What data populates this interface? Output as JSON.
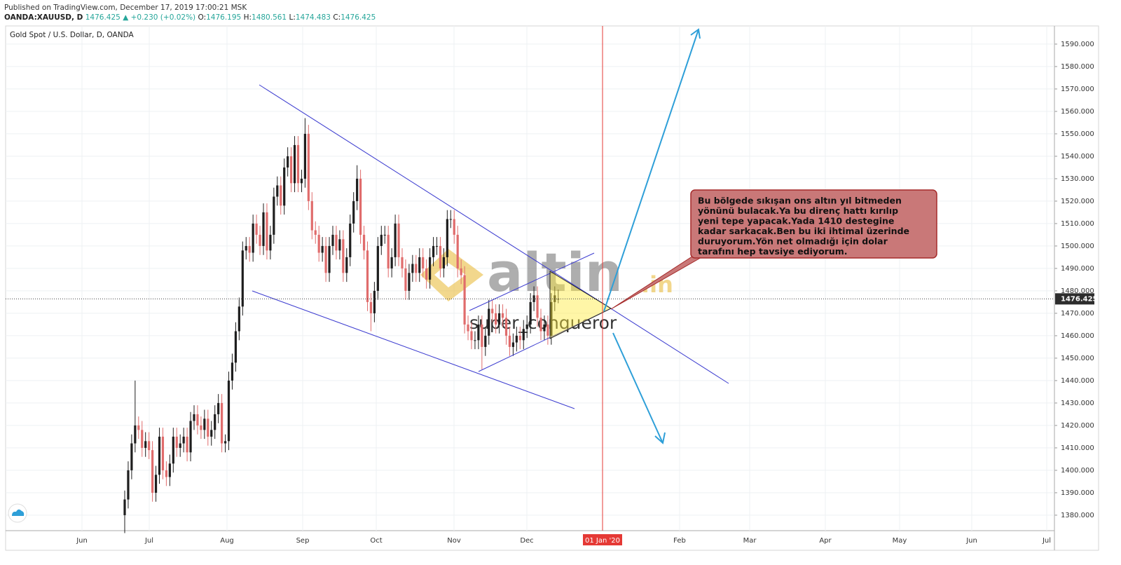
{
  "header": {
    "published": "Published on TradingView.com, December 17, 2019 17:00:21 MSK",
    "symbol": "OANDA:XAUUSD, D",
    "last": "1476.425",
    "change": "▲ +0.230 (+0.02%)",
    "ohlc": [
      {
        "k": "O:",
        "v": "1476.195"
      },
      {
        "k": "H:",
        "v": "1480.561"
      },
      {
        "k": "L:",
        "v": "1474.483"
      },
      {
        "k": "C:",
        "v": "1476.425"
      }
    ]
  },
  "annotation": {
    "lines": [
      "Bu bölgede sıkışan ons altın yıl bitmeden",
      "yönünü bulacak.Ya bu direnç hattı kırılıp",
      "yeni tepe yapacak.Yada 1410 destegine",
      "kadar sarkacak.Ben bu iki ihtimal üzerinde",
      "duruyorum.Yön net olmadığı için dolar",
      "tarafını hep tavsiye ediyorum."
    ]
  },
  "watermark": {
    "brand": "altin",
    "tld": ".in",
    "author": "super_conqueror"
  },
  "chart_data": {
    "type": "candlestick",
    "title": "Gold Spot / U.S. Dollar, D, OANDA",
    "x_labels": [
      "Jun",
      "Jul",
      "Aug",
      "Sep",
      "Oct",
      "Nov",
      "Dec",
      "Feb",
      "Mar",
      "Apr",
      "May",
      "Jun",
      "Jul"
    ],
    "marker_label": "01 Jan '20",
    "up_color": "#1e1e1e",
    "down_color": "#e06c6c",
    "grid": true,
    "ylim": [
      1373.1,
      1598.1
    ],
    "yticks": [
      {
        "value": 1380,
        "label": "1380.000"
      },
      {
        "value": 1390,
        "label": "1390.000"
      },
      {
        "value": 1400,
        "label": "1400.000"
      },
      {
        "value": 1410,
        "label": "1410.000"
      },
      {
        "value": 1420,
        "label": "1420.000"
      },
      {
        "value": 1430,
        "label": "1430.000"
      },
      {
        "value": 1440,
        "label": "1440.000"
      },
      {
        "value": 1450,
        "label": "1450.000"
      },
      {
        "value": 1460,
        "label": "1460.000"
      },
      {
        "value": 1470,
        "label": "1470.000"
      },
      {
        "value": 1480,
        "label": "1480.000"
      },
      {
        "value": 1490,
        "label": "1490.000"
      },
      {
        "value": 1500,
        "label": "1500.000"
      },
      {
        "value": 1510,
        "label": "1510.000"
      },
      {
        "value": 1520,
        "label": "1520.000"
      },
      {
        "value": 1530,
        "label": "1530.000"
      },
      {
        "value": 1540,
        "label": "1540.000"
      },
      {
        "value": 1550,
        "label": "1550.000"
      },
      {
        "value": 1560,
        "label": "1560.000"
      },
      {
        "value": 1570,
        "label": "1570.000"
      },
      {
        "value": 1580,
        "label": "1580.000"
      },
      {
        "value": 1590,
        "label": "1590.000"
      }
    ],
    "price_line": {
      "value": 1476.425,
      "label": "1476.425"
    },
    "open": [
      1380,
      1387,
      1400,
      1412,
      1420,
      1418,
      1410,
      1413,
      1409,
      1390,
      1398,
      1415,
      1400,
      1397,
      1403,
      1415,
      1410,
      1412,
      1415,
      1408,
      1422,
      1425,
      1420,
      1418,
      1423,
      1415,
      1418,
      1425,
      1430,
      1412,
      1413,
      1440,
      1448,
      1462,
      1473,
      1498,
      1500,
      1497,
      1510,
      1505,
      1500,
      1515,
      1498,
      1505,
      1522,
      1527,
      1518,
      1535,
      1540,
      1528,
      1545,
      1528,
      1530,
      1550,
      1520,
      1507,
      1505,
      1497,
      1500,
      1488,
      1500,
      1505,
      1498,
      1503,
      1488,
      1495,
      1510,
      1520,
      1530,
      1505,
      1498,
      1475,
      1470,
      1480,
      1500,
      1505,
      1505,
      1490,
      1495,
      1510,
      1495,
      1490,
      1480,
      1488,
      1492,
      1488,
      1495,
      1490,
      1485,
      1495,
      1500,
      1500,
      1490,
      1495,
      1512,
      1512,
      1505,
      1490,
      1487,
      1465,
      1462,
      1458,
      1458,
      1465,
      1455,
      1460,
      1472,
      1470,
      1465,
      1470,
      1468,
      1460,
      1455,
      1457,
      1460,
      1458,
      1463,
      1465,
      1475,
      1478,
      1468,
      1462,
      1465,
      1460,
      1475,
      1476.195
    ],
    "high": [
      1391,
      1404,
      1416,
      1440,
      1424,
      1422,
      1417,
      1417,
      1413,
      1402,
      1419,
      1419,
      1404,
      1407,
      1419,
      1419,
      1416,
      1419,
      1419,
      1426,
      1429,
      1429,
      1424,
      1427,
      1427,
      1422,
      1429,
      1434,
      1434,
      1416,
      1444,
      1452,
      1466,
      1477,
      1502,
      1504,
      1504,
      1514,
      1514,
      1509,
      1519,
      1519,
      1509,
      1526,
      1531,
      1531,
      1539,
      1544,
      1544,
      1549,
      1549,
      1534,
      1557,
      1554,
      1524,
      1511,
      1509,
      1504,
      1504,
      1504,
      1509,
      1509,
      1507,
      1507,
      1499,
      1514,
      1524,
      1536,
      1534,
      1509,
      1502,
      1479,
      1484,
      1504,
      1509,
      1509,
      1509,
      1499,
      1514,
      1514,
      1499,
      1494,
      1492,
      1496,
      1496,
      1499,
      1499,
      1494,
      1499,
      1504,
      1504,
      1504,
      1499,
      1516,
      1516,
      1516,
      1509,
      1494,
      1491,
      1469,
      1466,
      1462,
      1469,
      1469,
      1464,
      1476,
      1476,
      1474,
      1474,
      1474,
      1472,
      1464,
      1461,
      1464,
      1464,
      1467,
      1469,
      1479,
      1482,
      1482,
      1472,
      1469,
      1469,
      1479,
      1482,
      1480.561
    ],
    "low": [
      1372,
      1383,
      1396,
      1408,
      1414,
      1406,
      1406,
      1405,
      1386,
      1386,
      1394,
      1396,
      1393,
      1393,
      1399,
      1406,
      1406,
      1408,
      1404,
      1404,
      1418,
      1416,
      1414,
      1414,
      1411,
      1411,
      1414,
      1421,
      1408,
      1408,
      1409,
      1436,
      1444,
      1458,
      1469,
      1494,
      1493,
      1493,
      1501,
      1496,
      1496,
      1494,
      1494,
      1501,
      1518,
      1514,
      1514,
      1531,
      1524,
      1524,
      1524,
      1524,
      1526,
      1516,
      1503,
      1501,
      1493,
      1493,
      1484,
      1484,
      1496,
      1494,
      1494,
      1484,
      1484,
      1491,
      1506,
      1516,
      1501,
      1494,
      1471,
      1462,
      1466,
      1476,
      1496,
      1501,
      1486,
      1486,
      1491,
      1491,
      1486,
      1476,
      1476,
      1484,
      1484,
      1484,
      1486,
      1481,
      1481,
      1491,
      1496,
      1486,
      1486,
      1491,
      1508,
      1501,
      1486,
      1483,
      1461,
      1458,
      1454,
      1454,
      1454,
      1445,
      1451,
      1456,
      1466,
      1461,
      1461,
      1464,
      1456,
      1451,
      1451,
      1453,
      1454,
      1454,
      1459,
      1461,
      1471,
      1464,
      1458,
      1458,
      1456,
      1456,
      1471,
      1474.483
    ],
    "close": [
      1387,
      1400,
      1412,
      1420,
      1418,
      1410,
      1413,
      1409,
      1390,
      1398,
      1415,
      1400,
      1397,
      1403,
      1415,
      1410,
      1412,
      1415,
      1408,
      1422,
      1425,
      1420,
      1418,
      1423,
      1415,
      1418,
      1425,
      1430,
      1412,
      1413,
      1440,
      1448,
      1462,
      1473,
      1498,
      1500,
      1497,
      1510,
      1505,
      1500,
      1515,
      1498,
      1505,
      1522,
      1527,
      1518,
      1535,
      1540,
      1528,
      1545,
      1528,
      1530,
      1550,
      1520,
      1507,
      1505,
      1497,
      1500,
      1488,
      1500,
      1505,
      1498,
      1503,
      1488,
      1495,
      1510,
      1520,
      1530,
      1505,
      1498,
      1475,
      1470,
      1480,
      1500,
      1505,
      1505,
      1490,
      1495,
      1510,
      1495,
      1490,
      1480,
      1488,
      1492,
      1488,
      1495,
      1490,
      1485,
      1495,
      1500,
      1500,
      1490,
      1495,
      1512,
      1512,
      1505,
      1490,
      1487,
      1465,
      1462,
      1458,
      1458,
      1465,
      1455,
      1460,
      1472,
      1470,
      1465,
      1470,
      1468,
      1460,
      1455,
      1457,
      1460,
      1458,
      1463,
      1465,
      1475,
      1478,
      1468,
      1462,
      1465,
      1460,
      1475,
      1478,
      1476.425
    ]
  }
}
